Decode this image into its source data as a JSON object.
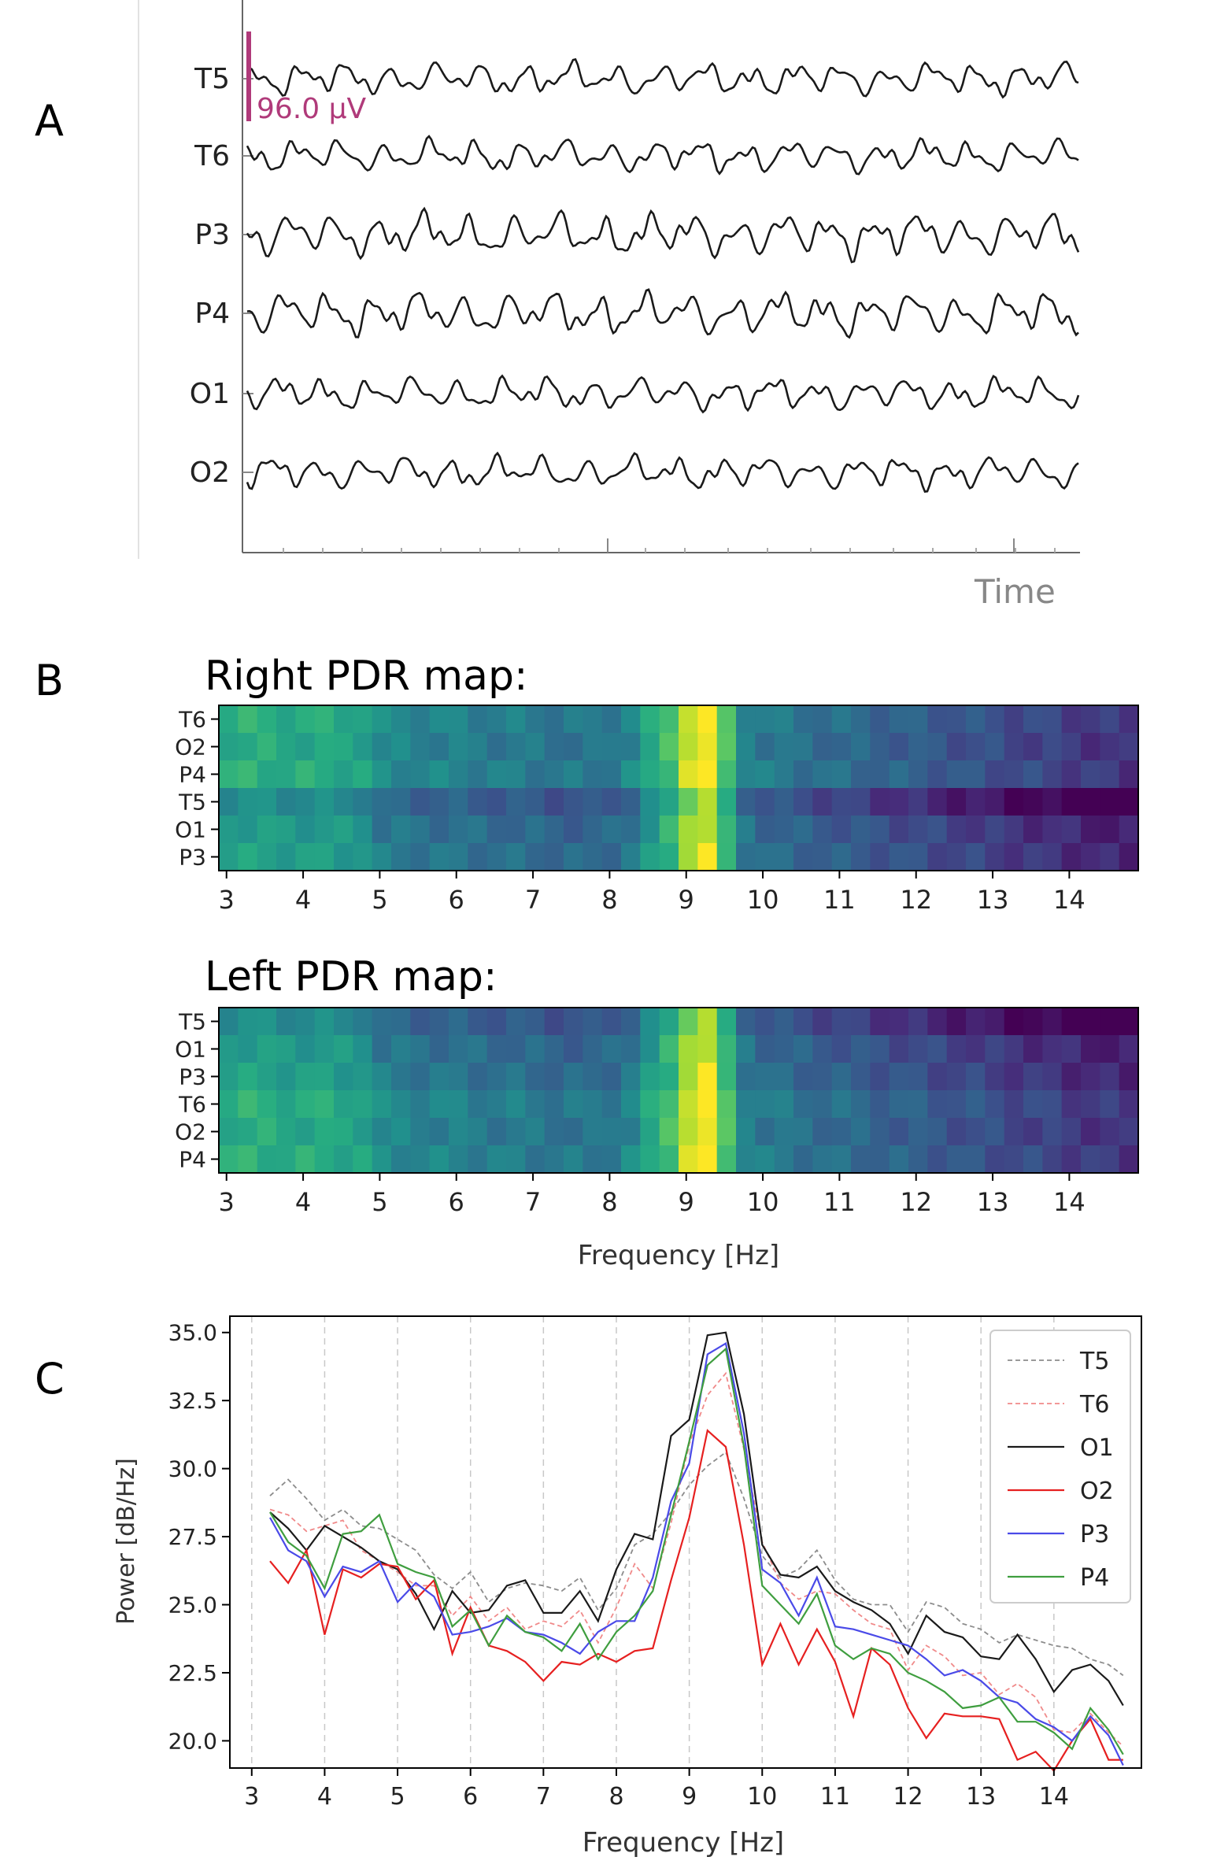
{
  "panel_labels": {
    "a": "A",
    "b": "B",
    "c": "C"
  },
  "colors": {
    "trace": "#1a1a1a",
    "scale_bar": "#b03a7a",
    "axis": "#444444",
    "time_label": "#888888",
    "grid": "#cccccc"
  },
  "chart_data": [
    {
      "id": "eeg",
      "type": "line",
      "title": "",
      "channels": [
        "T5",
        "T6",
        "P3",
        "P4",
        "O1",
        "O2"
      ],
      "scale_label": "96.0 µV",
      "xlabel": "Time"
    },
    {
      "id": "right_map",
      "type": "heatmap",
      "title": "Right PDR map:",
      "rows": [
        "T6",
        "O2",
        "P4",
        "T5",
        "O1",
        "P3"
      ],
      "xlabel": "",
      "xlim": [
        2.9,
        14.9
      ],
      "xticks": [
        "3",
        "4",
        "5",
        "6",
        "7",
        "8",
        "9",
        "10",
        "11",
        "12",
        "13",
        "14"
      ],
      "value_range": [
        0,
        1
      ]
    },
    {
      "id": "left_map",
      "type": "heatmap",
      "title": "Left PDR map:",
      "rows": [
        "T5",
        "O1",
        "P3",
        "T6",
        "O2",
        "P4"
      ],
      "xlabel": "Frequency [Hz]",
      "xlim": [
        2.9,
        14.9
      ],
      "xticks": [
        "3",
        "4",
        "5",
        "6",
        "7",
        "8",
        "9",
        "10",
        "11",
        "12",
        "13",
        "14"
      ],
      "value_range": [
        0,
        1
      ]
    },
    {
      "id": "psd",
      "type": "line",
      "title": "",
      "xlabel": "Frequency [Hz]",
      "ylabel": "Power [dB/Hz]",
      "xlim": [
        2.7,
        15.2
      ],
      "ylim": [
        19.0,
        35.6
      ],
      "xticks": [
        "3",
        "4",
        "5",
        "6",
        "7",
        "8",
        "9",
        "10",
        "11",
        "12",
        "13",
        "14"
      ],
      "yticks": [
        "20.0",
        "22.5",
        "25.0",
        "27.5",
        "30.0",
        "32.5",
        "35.0"
      ],
      "grid": "vertical dashed",
      "legend_position": "top-right",
      "x": [
        3.25,
        3.5,
        3.75,
        4.0,
        4.25,
        4.5,
        4.75,
        5.0,
        5.25,
        5.5,
        5.75,
        6.0,
        6.25,
        6.5,
        6.75,
        7.0,
        7.25,
        7.5,
        7.75,
        8.0,
        8.25,
        8.5,
        8.75,
        9.0,
        9.25,
        9.5,
        9.75,
        10.0,
        10.25,
        10.5,
        10.75,
        11.0,
        11.25,
        11.5,
        11.75,
        12.0,
        12.25,
        12.5,
        12.75,
        13.0,
        13.25,
        13.5,
        13.75,
        14.0,
        14.25,
        14.5,
        14.75,
        14.95
      ],
      "series": [
        {
          "name": "T5",
          "color": "#8c8c8c",
          "dash": "dashed",
          "values": [
            29.0,
            29.6,
            28.9,
            28.1,
            28.5,
            27.9,
            27.8,
            27.4,
            27.0,
            26.1,
            25.6,
            26.2,
            25.1,
            25.6,
            25.8,
            25.7,
            25.5,
            26.0,
            24.8,
            25.6,
            27.2,
            27.6,
            28.4,
            29.4,
            30.1,
            30.6,
            28.9,
            26.8,
            26.0,
            26.3,
            27.0,
            25.9,
            25.2,
            25.0,
            25.0,
            24.0,
            25.1,
            24.9,
            24.3,
            24.1,
            23.6,
            23.9,
            23.7,
            23.5,
            23.4,
            23.0,
            22.8,
            22.4
          ]
        },
        {
          "name": "T6",
          "color": "#f08a8a",
          "dash": "dashed",
          "values": [
            28.5,
            28.3,
            27.7,
            27.9,
            28.1,
            27.0,
            26.6,
            26.2,
            25.7,
            25.7,
            24.6,
            25.3,
            24.4,
            24.9,
            24.1,
            24.4,
            24.2,
            24.8,
            23.6,
            24.9,
            26.5,
            25.6,
            28.0,
            30.9,
            32.7,
            33.5,
            30.7,
            27.3,
            25.8,
            25.2,
            25.5,
            25.4,
            24.8,
            24.3,
            24.1,
            22.6,
            23.5,
            23.1,
            22.4,
            22.5,
            21.7,
            22.1,
            21.6,
            20.4,
            20.3,
            21.0,
            20.3,
            19.8
          ]
        },
        {
          "name": "O1",
          "color": "#1a1a1a",
          "dash": "solid",
          "values": [
            28.4,
            27.8,
            27.0,
            27.9,
            27.5,
            27.1,
            26.6,
            26.3,
            25.4,
            24.1,
            25.5,
            24.7,
            24.8,
            25.7,
            25.9,
            24.7,
            24.7,
            25.5,
            24.4,
            26.3,
            27.6,
            27.4,
            31.2,
            31.8,
            34.9,
            35.0,
            32.0,
            27.2,
            26.1,
            26.0,
            26.4,
            25.5,
            25.1,
            24.8,
            24.3,
            23.2,
            24.6,
            24.0,
            23.8,
            23.1,
            23.0,
            23.9,
            23.0,
            21.8,
            22.6,
            22.8,
            22.2,
            21.3
          ]
        },
        {
          "name": "O2",
          "color": "#e62020",
          "dash": "solid",
          "values": [
            26.6,
            25.8,
            27.0,
            23.9,
            26.3,
            26.0,
            26.5,
            26.4,
            25.2,
            25.9,
            23.2,
            24.9,
            23.5,
            23.3,
            22.9,
            22.2,
            22.9,
            22.8,
            23.2,
            22.9,
            23.3,
            23.4,
            25.9,
            28.2,
            31.4,
            30.8,
            27.2,
            22.8,
            24.3,
            22.8,
            24.1,
            22.9,
            20.9,
            23.4,
            22.8,
            21.2,
            20.1,
            21.0,
            20.9,
            20.9,
            20.8,
            19.3,
            19.6,
            18.9,
            20.0,
            20.8,
            19.3,
            19.3
          ]
        },
        {
          "name": "P3",
          "color": "#4a4ae8",
          "dash": "solid",
          "values": [
            28.2,
            27.0,
            26.6,
            25.3,
            26.4,
            26.2,
            26.6,
            25.1,
            25.8,
            25.3,
            23.9,
            24.0,
            24.2,
            24.5,
            24.0,
            23.9,
            23.6,
            23.2,
            24.0,
            24.4,
            24.4,
            26.0,
            28.8,
            30.2,
            34.2,
            34.6,
            31.3,
            26.3,
            25.8,
            24.6,
            26.0,
            24.2,
            24.1,
            23.9,
            23.7,
            23.5,
            23.0,
            22.4,
            22.6,
            22.2,
            21.6,
            21.4,
            20.8,
            20.5,
            20.0,
            20.9,
            20.2,
            19.1
          ]
        },
        {
          "name": "P4",
          "color": "#3f9e3f",
          "dash": "solid",
          "values": [
            28.4,
            27.3,
            26.8,
            25.6,
            27.6,
            27.7,
            28.3,
            26.5,
            26.2,
            26.0,
            24.2,
            24.8,
            23.5,
            24.6,
            24.0,
            23.8,
            23.3,
            24.3,
            23.0,
            24.0,
            24.6,
            25.5,
            28.3,
            31.0,
            33.8,
            34.4,
            30.8,
            25.7,
            25.0,
            24.3,
            25.4,
            23.5,
            23.0,
            23.4,
            23.2,
            22.5,
            22.2,
            21.8,
            21.2,
            21.3,
            21.6,
            20.7,
            20.7,
            20.3,
            19.7,
            21.2,
            20.4,
            19.5
          ]
        }
      ]
    }
  ]
}
